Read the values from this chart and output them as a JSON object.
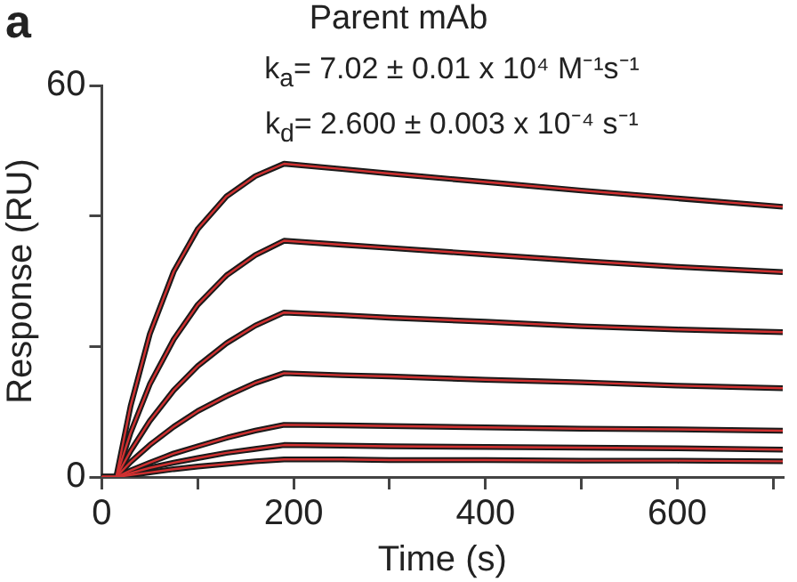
{
  "chart_data": {
    "type": "line",
    "title": "Parent mAb",
    "subtitle": "k$_{a}$= 7.02 ± 0.01 x 10⁴ M⁻¹s⁻¹\nk$_{d}$= 2.600 ± 0.003 x 10⁻⁴ s⁻¹",
    "annotations": [
      "a"
    ],
    "xlabel": "Time (s)",
    "ylabel": "Response (RU)",
    "x": [
      0,
      15,
      30,
      50,
      75,
      100,
      130,
      160,
      190,
      250,
      300,
      400,
      500,
      600,
      710
    ],
    "series": [
      {
        "color": "#1a1a1a",
        "values": [
          0,
          0,
          10.9,
          21.9,
          31.5,
          38.0,
          43.0,
          46.1,
          48,
          47.2,
          46.5,
          45.2,
          43.9,
          42.7,
          41.4
        ]
      },
      {
        "color": "#1a1a1a",
        "values": [
          0,
          0,
          6.8,
          14.2,
          21.1,
          26.4,
          30.9,
          34.0,
          36.2,
          35.6,
          35.1,
          34.1,
          33.1,
          32.2,
          31.4
        ]
      },
      {
        "color": "#1a1a1a",
        "values": [
          0,
          0,
          4.0,
          8.6,
          13.3,
          17.0,
          20.5,
          23.2,
          25.2,
          24.8,
          24.4,
          23.8,
          23.1,
          22.6,
          22.2
        ]
      },
      {
        "color": "#1a1a1a",
        "values": [
          0,
          0,
          2.3,
          4.9,
          7.7,
          10.1,
          12.4,
          14.4,
          15.9,
          15.6,
          15.4,
          14.9,
          14.5,
          14.0,
          13.6
        ]
      },
      {
        "color": "#1a1a1a",
        "values": [
          0,
          0,
          1.0,
          2.2,
          3.6,
          4.7,
          6.0,
          7.1,
          8.0,
          7.9,
          7.8,
          7.6,
          7.4,
          7.3,
          7.1
        ]
      },
      {
        "color": "#1a1a1a",
        "values": [
          0,
          0,
          0.6,
          1.4,
          2.2,
          2.9,
          3.7,
          4.3,
          4.9,
          4.8,
          4.7,
          4.6,
          4.5,
          4.4,
          4.2
        ]
      },
      {
        "color": "#1a1a1a",
        "values": [
          0,
          0,
          0.3,
          0.7,
          1.2,
          1.6,
          2.0,
          2.4,
          2.7,
          2.7,
          2.6,
          2.6,
          2.5,
          2.5,
          2.4
        ]
      },
      {
        "color": "#d03030",
        "values": [
          0,
          0,
          10.9,
          21.9,
          31.5,
          38.0,
          43.0,
          46.1,
          48,
          47.2,
          46.5,
          45.2,
          43.9,
          42.7,
          41.4
        ]
      },
      {
        "color": "#d03030",
        "values": [
          0,
          0,
          6.8,
          14.2,
          21.1,
          26.4,
          30.9,
          34.0,
          36.2,
          35.6,
          35.1,
          34.1,
          33.1,
          32.2,
          31.4
        ]
      },
      {
        "color": "#d03030",
        "values": [
          0,
          0,
          4.0,
          8.6,
          13.3,
          17.0,
          20.5,
          23.2,
          25.2,
          24.8,
          24.4,
          23.8,
          23.1,
          22.6,
          22.2
        ]
      },
      {
        "color": "#d03030",
        "values": [
          0,
          0,
          2.3,
          4.9,
          7.7,
          10.1,
          12.4,
          14.4,
          15.9,
          15.6,
          15.4,
          14.9,
          14.5,
          14.0,
          13.6
        ]
      },
      {
        "color": "#d03030",
        "values": [
          0,
          0,
          1.0,
          2.2,
          3.6,
          4.7,
          6.0,
          7.1,
          8.0,
          7.9,
          7.8,
          7.6,
          7.4,
          7.3,
          7.1
        ]
      },
      {
        "color": "#d03030",
        "values": [
          0,
          0,
          0.6,
          1.4,
          2.2,
          2.9,
          3.7,
          4.3,
          4.9,
          4.8,
          4.7,
          4.6,
          4.5,
          4.4,
          4.2
        ]
      },
      {
        "color": "#d03030",
        "values": [
          0,
          0,
          0.3,
          0.7,
          1.2,
          1.6,
          2.0,
          2.4,
          2.7,
          2.7,
          2.6,
          2.6,
          2.5,
          2.5,
          2.4
        ]
      }
    ],
    "xlim": [
      0,
      710
    ],
    "xticks": [
      0,
      {
        "value": 100,
        "label": null
      },
      200,
      {
        "value": 300,
        "label": null
      },
      400,
      {
        "value": 500,
        "label": null
      },
      600,
      {
        "value": 700,
        "label": null
      }
    ],
    "ylim": [
      0,
      60
    ],
    "yticks": [
      0,
      {
        "value": 20,
        "label": null
      },
      {
        "value": 40,
        "label": null
      },
      60
    ],
    "grid": false,
    "legend": false,
    "marker": "none",
    "line_style": "solid"
  }
}
